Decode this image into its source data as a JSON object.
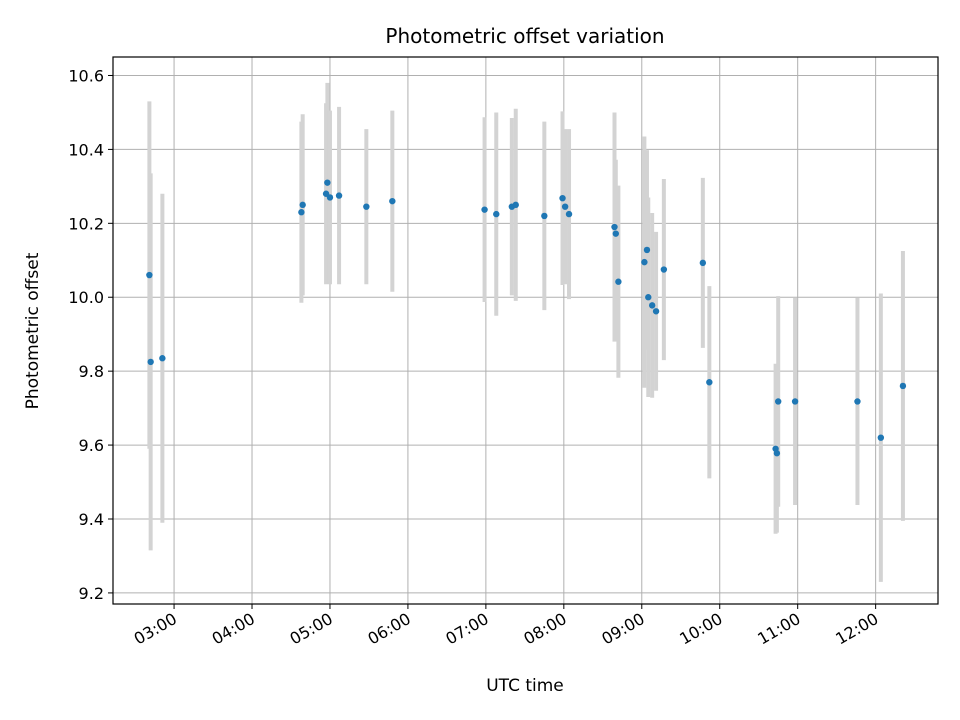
{
  "chart_data": {
    "type": "scatter",
    "title": "Photometric offset variation",
    "xlabel": "UTC time",
    "ylabel": "Photometric offset",
    "x_unit": "UTC time (HH:MM)",
    "xlim": [
      "02:13",
      "12:48"
    ],
    "ylim": [
      9.17,
      10.65
    ],
    "grid": true,
    "x_ticks": [
      "03:00",
      "04:00",
      "05:00",
      "06:00",
      "07:00",
      "08:00",
      "09:00",
      "10:00",
      "11:00",
      "12:00"
    ],
    "y_ticks": [
      "9.2",
      "9.4",
      "9.6",
      "9.8",
      "10.0",
      "10.2",
      "10.4",
      "10.6"
    ],
    "marker_color": "#1f77b4",
    "errorbar_color": "#d3d3d3",
    "points": [
      {
        "x": "02:41",
        "y": 10.06,
        "err": 0.47
      },
      {
        "x": "02:42",
        "y": 9.825,
        "err": 0.51
      },
      {
        "x": "02:51",
        "y": 9.835,
        "err": 0.445
      },
      {
        "x": "04:38",
        "y": 10.23,
        "err": 0.245
      },
      {
        "x": "04:39",
        "y": 10.25,
        "err": 0.245
      },
      {
        "x": "04:57",
        "y": 10.28,
        "err": 0.245
      },
      {
        "x": "04:58",
        "y": 10.31,
        "err": 0.27
      },
      {
        "x": "05:00",
        "y": 10.27,
        "err": 0.235
      },
      {
        "x": "05:07",
        "y": 10.275,
        "err": 0.24
      },
      {
        "x": "05:28",
        "y": 10.245,
        "err": 0.21
      },
      {
        "x": "05:48",
        "y": 10.26,
        "err": 0.245
      },
      {
        "x": "06:59",
        "y": 10.237,
        "err": 0.25
      },
      {
        "x": "07:08",
        "y": 10.225,
        "err": 0.275
      },
      {
        "x": "07:20",
        "y": 10.245,
        "err": 0.24
      },
      {
        "x": "07:23",
        "y": 10.25,
        "err": 0.26
      },
      {
        "x": "07:45",
        "y": 10.22,
        "err": 0.255
      },
      {
        "x": "07:59",
        "y": 10.268,
        "err": 0.235
      },
      {
        "x": "08:01",
        "y": 10.245,
        "err": 0.21
      },
      {
        "x": "08:04",
        "y": 10.225,
        "err": 0.23
      },
      {
        "x": "08:39",
        "y": 10.19,
        "err": 0.31
      },
      {
        "x": "08:40",
        "y": 10.172,
        "err": 0.2
      },
      {
        "x": "08:42",
        "y": 10.042,
        "err": 0.26
      },
      {
        "x": "09:02",
        "y": 10.095,
        "err": 0.34
      },
      {
        "x": "09:04",
        "y": 10.128,
        "err": 0.27
      },
      {
        "x": "09:05",
        "y": 10.0,
        "err": 0.27
      },
      {
        "x": "09:08",
        "y": 9.978,
        "err": 0.25
      },
      {
        "x": "09:11",
        "y": 9.962,
        "err": 0.215
      },
      {
        "x": "09:17",
        "y": 10.075,
        "err": 0.245
      },
      {
        "x": "09:47",
        "y": 10.093,
        "err": 0.23
      },
      {
        "x": "09:52",
        "y": 9.77,
        "err": 0.26
      },
      {
        "x": "10:43",
        "y": 9.59,
        "err": 0.23
      },
      {
        "x": "10:44",
        "y": 9.578,
        "err": 0.215
      },
      {
        "x": "10:45",
        "y": 9.718,
        "err": 0.285
      },
      {
        "x": "10:58",
        "y": 9.718,
        "err": 0.28
      },
      {
        "x": "11:46",
        "y": 9.718,
        "err": 0.28
      },
      {
        "x": "12:04",
        "y": 9.62,
        "err": 0.39
      },
      {
        "x": "12:21",
        "y": 9.76,
        "err": 0.365
      }
    ]
  }
}
